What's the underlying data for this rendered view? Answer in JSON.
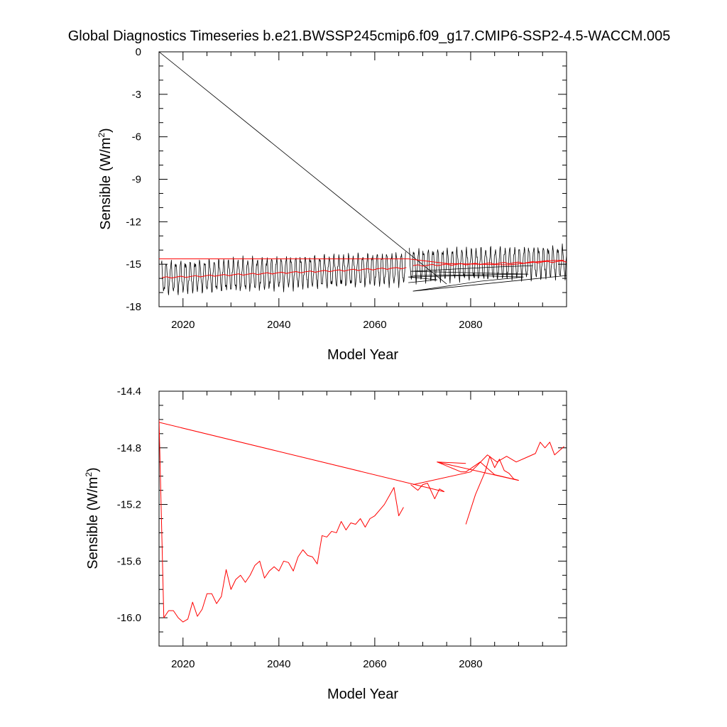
{
  "figure": {
    "title": "Global Diagnostics Timeseries b.e21.BWSSP245cmip6.f09_g17.CMIP6-SSP2-4.5-WACCM.005"
  },
  "chart_data": [
    {
      "type": "line",
      "title": "Global Diagnostics Timeseries b.e21.BWSSP245cmip6.f09_g17.CMIP6-SSP2-4.5-WACCM.005",
      "xlabel": "Model Year",
      "ylabel": "Sensible (W/m2)",
      "ylabel_main": "Sensible (W/m",
      "ylabel_sup": "2",
      "ylabel_end": ")",
      "xlim": [
        2015,
        2100
      ],
      "ylim": [
        -18,
        0
      ],
      "xticks": [
        2020,
        2040,
        2060,
        2080
      ],
      "xtick_labels": [
        "2020",
        "2040",
        "2060",
        "2080"
      ],
      "yticks": [
        0,
        -3,
        -6,
        -9,
        -12,
        -15,
        -18
      ],
      "ytick_labels": [
        "0",
        "-3",
        "-6",
        "-9",
        "-12",
        "-15",
        "-18"
      ],
      "grid": false,
      "series": [
        {
          "kind": "monthly",
          "color": "#000000",
          "stroke_width": 0.8,
          "spike": [
            [
              2015.0,
              0.0
            ],
            [
              2075.0,
              -16.4
            ]
          ],
          "segments": [
            {
              "x_start": 2015.5,
              "x_end": 2066.4,
              "mean_start": -15.95,
              "mean_end": -15.3,
              "amplitude": 1.0,
              "phase": 0.0
            },
            {
              "x_start": 2067.2,
              "x_end": 2100.0,
              "mean_start": -15.1,
              "mean_end": -14.85,
              "amplitude": 1.0,
              "phase": 0.3
            }
          ],
          "junk_lines": [
            [
              [
                2067.0,
                -16.3
              ],
              [
                2073.0,
                -16.1
              ],
              [
                2067.0,
                -15.9
              ],
              [
                2080.0,
                -15.8
              ],
              [
                2091.0,
                -15.9
              ],
              [
                2082.0,
                -16.2
              ],
              [
                2068.0,
                -16.9
              ],
              [
                2100.0,
                -15.8
              ]
            ],
            [
              [
                2068.0,
                -15.8
              ],
              [
                2092.0,
                -15.7
              ],
              [
                2067.5,
                -15.5
              ],
              [
                2085.0,
                -15.2
              ],
              [
                2093.0,
                -15.1
              ]
            ]
          ]
        },
        {
          "kind": "points",
          "color": "#ff0000",
          "stroke_width": 1,
          "points": [
            [
              2015.0,
              -14.62
            ],
            [
              2067.0,
              -14.62
            ],
            [
              2075.0,
              -14.95
            ],
            [
              2088.0,
              -15.05
            ],
            [
              2096.0,
              -14.75
            ],
            [
              2099.5,
              -14.72
            ]
          ]
        },
        {
          "kind": "annual_wave",
          "color": "#ff0000",
          "stroke_width": 1,
          "x_start": 2015.6,
          "x_end": 2066.5,
          "mean_start": -15.95,
          "mean_end": -15.25,
          "amplitude": 0.06
        },
        {
          "kind": "annual_wave",
          "color": "#ff0000",
          "stroke_width": 1,
          "x_start": 2068.0,
          "x_end": 2099.5,
          "mean_start": -15.1,
          "mean_end": -14.8,
          "amplitude": 0.06
        }
      ]
    },
    {
      "type": "line",
      "title": "",
      "xlabel": "Model Year",
      "ylabel": "Sensible (W/m2)",
      "ylabel_main": "Sensible (W/m",
      "ylabel_sup": "2",
      "ylabel_end": ")",
      "xlim": [
        2015,
        2100
      ],
      "ylim": [
        -16.2,
        -14.4
      ],
      "xticks": [
        2020,
        2040,
        2060,
        2080
      ],
      "xtick_labels": [
        "2020",
        "2040",
        "2060",
        "2080"
      ],
      "yticks": [
        -14.4,
        -14.8,
        -15.2,
        -15.6,
        -16.0
      ],
      "ytick_labels": [
        "-14.4",
        "-14.8",
        "-15.2",
        "-15.6",
        "-16.0"
      ],
      "grid": false,
      "series": [
        {
          "kind": "points",
          "color": "#ff0000",
          "stroke_width": 1,
          "points": [
            [
              2015.0,
              -14.6
            ],
            [
              2016.0,
              -16.0
            ],
            [
              2017.0,
              -15.95
            ],
            [
              2018.0,
              -15.95
            ],
            [
              2019.0,
              -16.0
            ],
            [
              2020.0,
              -16.03
            ],
            [
              2021.0,
              -16.01
            ],
            [
              2022.0,
              -15.89
            ],
            [
              2023.0,
              -15.99
            ],
            [
              2024.0,
              -15.94
            ],
            [
              2025.0,
              -15.83
            ],
            [
              2026.0,
              -15.83
            ],
            [
              2027.0,
              -15.9
            ],
            [
              2028.0,
              -15.85
            ],
            [
              2029.0,
              -15.66
            ],
            [
              2030.0,
              -15.8
            ],
            [
              2031.0,
              -15.73
            ],
            [
              2032.0,
              -15.7
            ],
            [
              2033.0,
              -15.75
            ],
            [
              2034.0,
              -15.7
            ],
            [
              2035.0,
              -15.63
            ],
            [
              2036.0,
              -15.6
            ],
            [
              2037.0,
              -15.72
            ],
            [
              2038.0,
              -15.67
            ],
            [
              2039.0,
              -15.64
            ],
            [
              2040.0,
              -15.67
            ],
            [
              2041.0,
              -15.6
            ],
            [
              2042.0,
              -15.61
            ],
            [
              2043.0,
              -15.67
            ],
            [
              2044.0,
              -15.57
            ],
            [
              2045.0,
              -15.52
            ],
            [
              2046.0,
              -15.56
            ],
            [
              2047.0,
              -15.57
            ],
            [
              2048.0,
              -15.62
            ],
            [
              2049.0,
              -15.42
            ],
            [
              2050.0,
              -15.43
            ],
            [
              2051.0,
              -15.39
            ],
            [
              2052.0,
              -15.4
            ],
            [
              2053.0,
              -15.32
            ],
            [
              2054.0,
              -15.38
            ],
            [
              2055.0,
              -15.33
            ],
            [
              2056.0,
              -15.34
            ],
            [
              2057.0,
              -15.3
            ],
            [
              2058.0,
              -15.36
            ],
            [
              2059.0,
              -15.3
            ],
            [
              2060.0,
              -15.28
            ],
            [
              2061.0,
              -15.24
            ],
            [
              2062.0,
              -15.2
            ],
            [
              2063.0,
              -15.14
            ],
            [
              2064.0,
              -15.08
            ],
            [
              2065.0,
              -15.28
            ],
            [
              2066.0,
              -15.22
            ]
          ]
        },
        {
          "kind": "points",
          "color": "#ff0000",
          "stroke_width": 1,
          "points": [
            [
              2015.0,
              -14.62
            ],
            [
              2074.5,
              -15.11
            ]
          ]
        },
        {
          "kind": "points",
          "color": "#ff0000",
          "stroke_width": 1,
          "points": [
            [
              2067.5,
              -15.06
            ],
            [
              2069.0,
              -15.1
            ],
            [
              2070.0,
              -15.06
            ],
            [
              2071.0,
              -15.05
            ],
            [
              2072.5,
              -15.16
            ],
            [
              2073.5,
              -15.09
            ],
            [
              2074.5,
              -15.11
            ]
          ]
        },
        {
          "kind": "points",
          "color": "#ff0000",
          "stroke_width": 1,
          "points": [
            [
              2068.0,
              -15.06
            ],
            [
              2080.0,
              -14.97
            ],
            [
              2081.5,
              -14.92
            ],
            [
              2083.5,
              -14.85
            ],
            [
              2085.5,
              -14.9
            ],
            [
              2087.5,
              -14.86
            ],
            [
              2089.5,
              -14.9
            ],
            [
              2091.5,
              -14.87
            ],
            [
              2093.5,
              -14.84
            ],
            [
              2094.5,
              -14.76
            ],
            [
              2095.5,
              -14.8
            ],
            [
              2096.5,
              -14.76
            ],
            [
              2097.5,
              -14.85
            ],
            [
              2099.5,
              -14.79
            ]
          ]
        },
        {
          "kind": "points",
          "color": "#ff0000",
          "stroke_width": 1,
          "points": [
            [
              2079.0,
              -15.34
            ],
            [
              2081.0,
              -15.13
            ],
            [
              2083.0,
              -14.97
            ],
            [
              2084.0,
              -14.86
            ],
            [
              2085.0,
              -14.94
            ],
            [
              2086.0,
              -14.88
            ],
            [
              2087.0,
              -14.96
            ],
            [
              2088.0,
              -14.98
            ],
            [
              2089.0,
              -15.02
            ],
            [
              2090.0,
              -15.03
            ],
            [
              2085.0,
              -14.99
            ],
            [
              2082.0,
              -14.9
            ],
            [
              2079.0,
              -14.97
            ],
            [
              2078.0,
              -14.97
            ],
            [
              2073.0,
              -14.9
            ],
            [
              2079.0,
              -14.91
            ]
          ]
        },
        {
          "kind": "points",
          "color": "#ff0000",
          "stroke_width": 1,
          "points": [
            [
              2073.0,
              -14.9
            ],
            [
              2090.0,
              -15.03
            ]
          ]
        }
      ]
    }
  ]
}
